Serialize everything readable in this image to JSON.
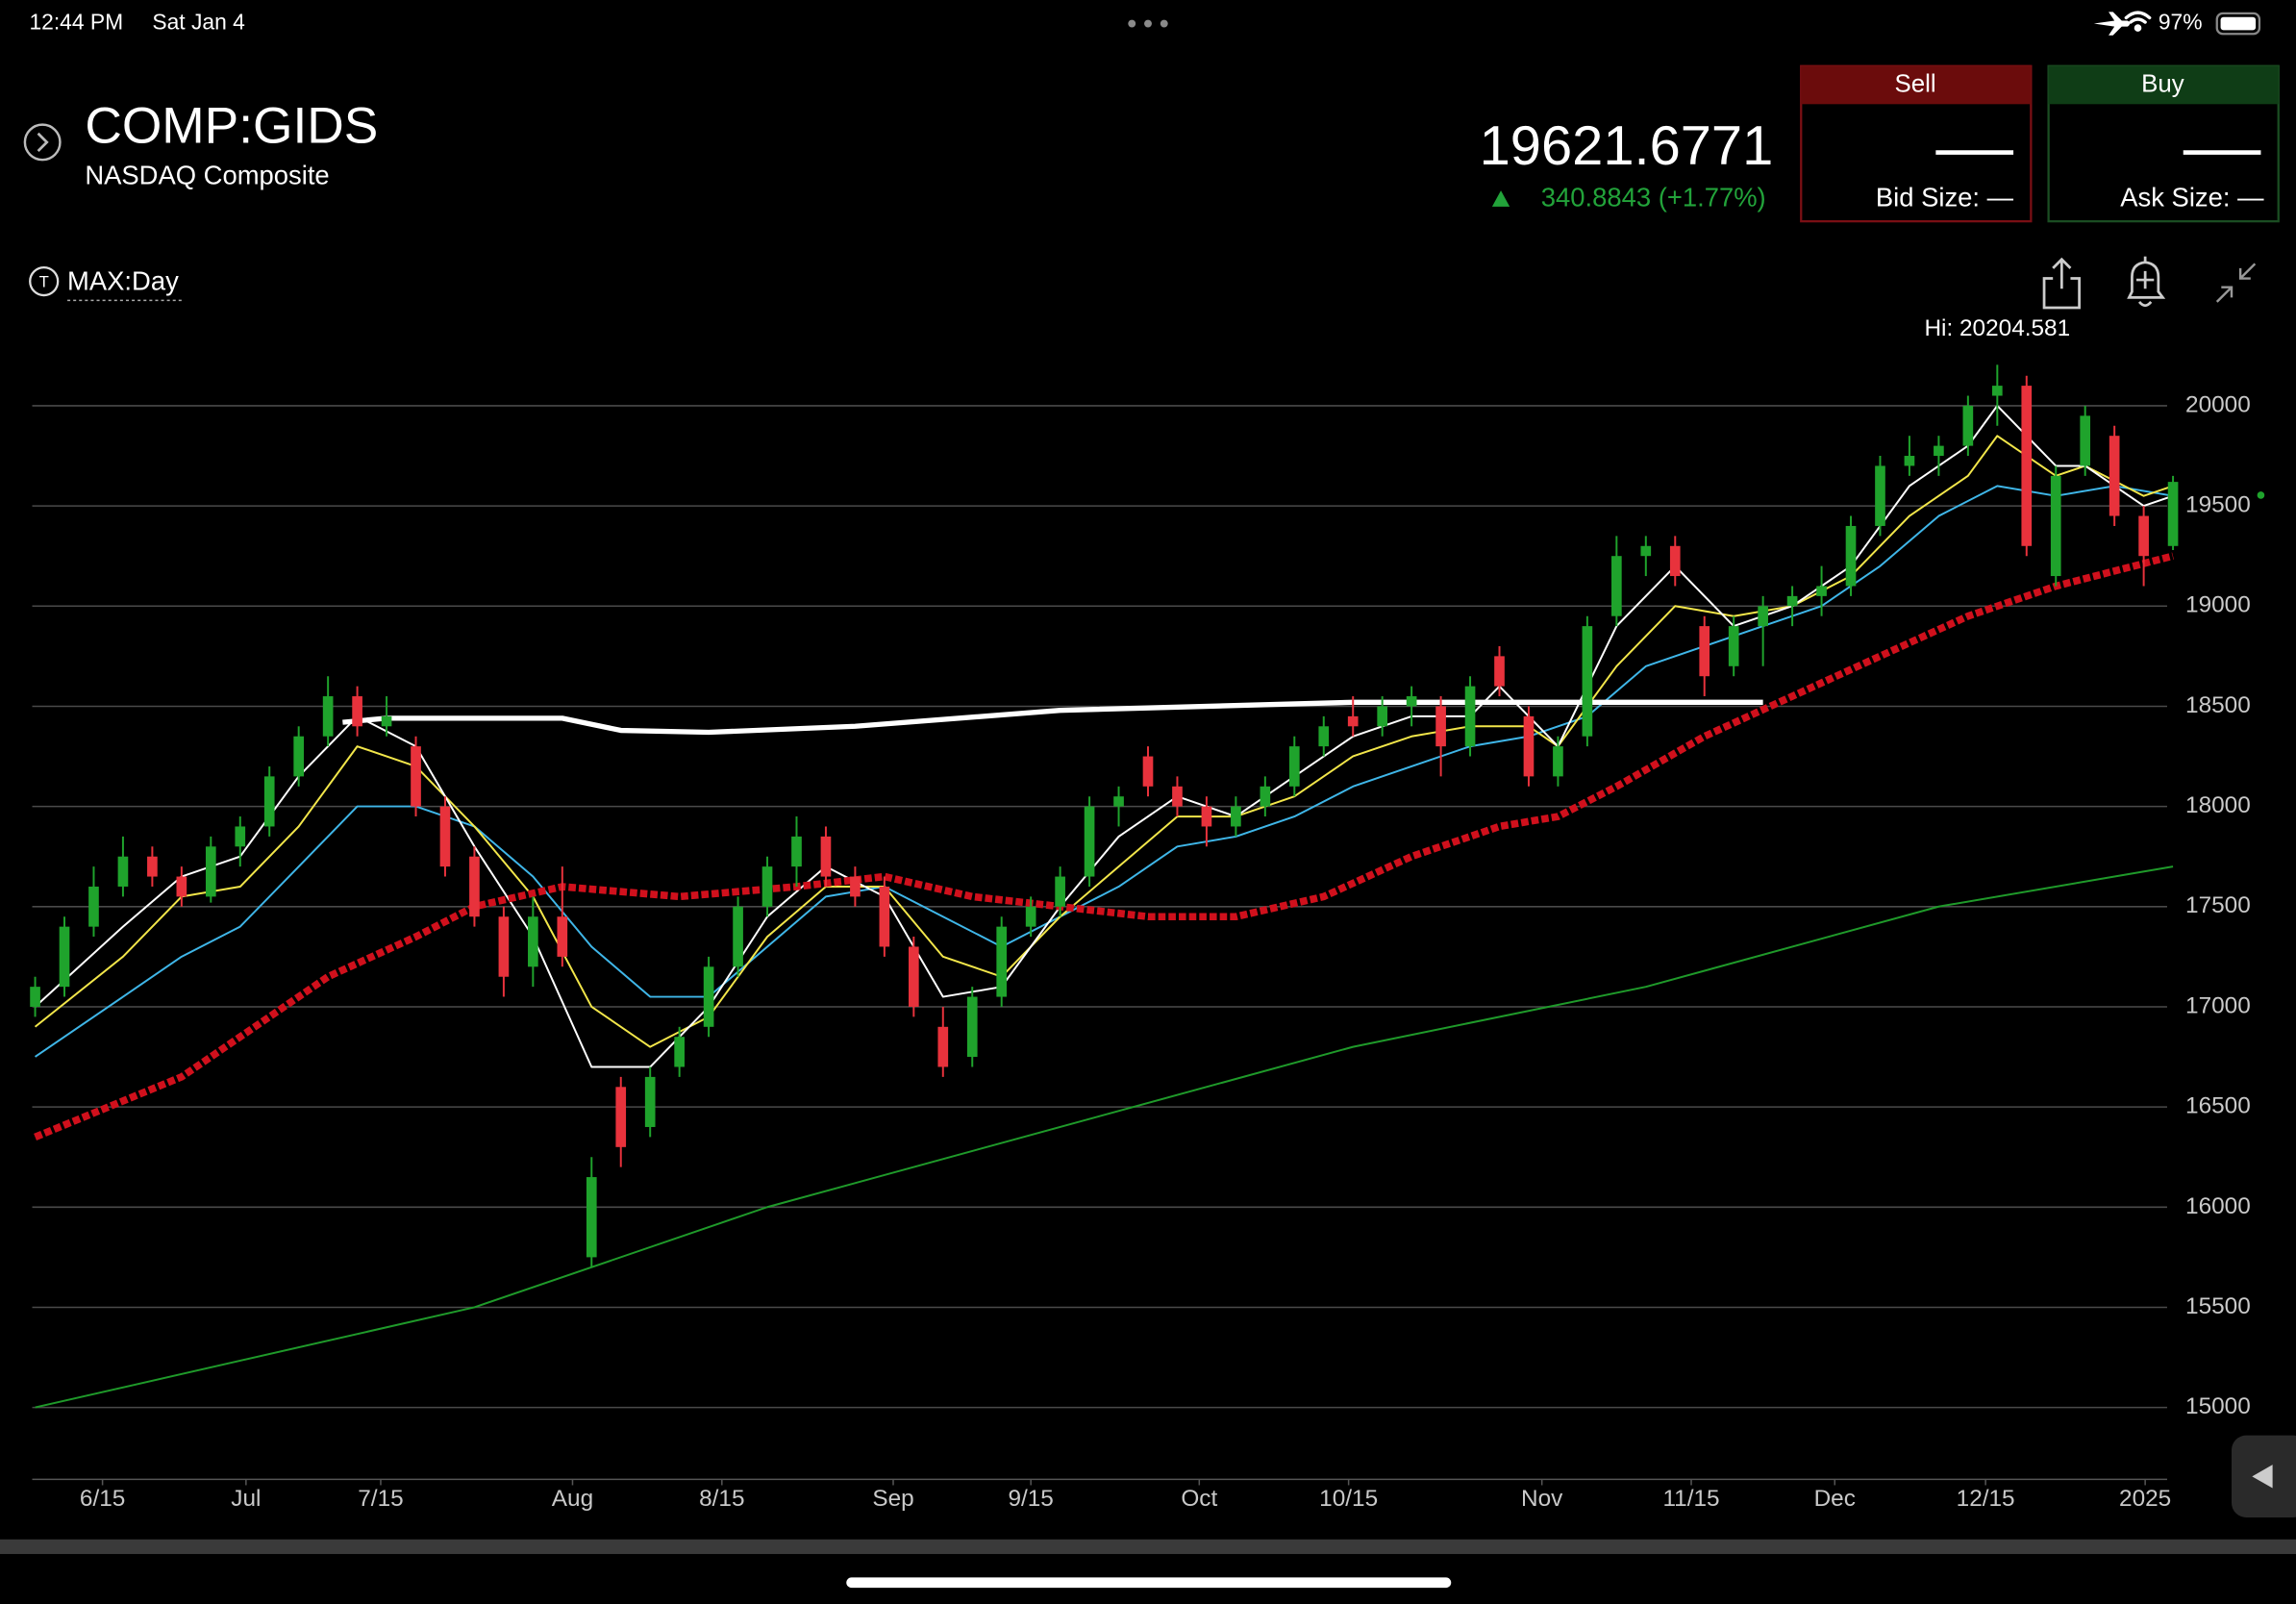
{
  "status_bar": {
    "time": "12:44 PM",
    "date": "Sat Jan 4",
    "battery": "97%"
  },
  "header": {
    "symbol": "COMP:GIDS",
    "name": "NASDAQ Composite",
    "price": "19621.6771",
    "change": "340.8843 (+1.77%)"
  },
  "trade": {
    "sell": "Sell",
    "bid_size": "Bid Size: —",
    "buy": "Buy",
    "ask_size": "Ask Size: —"
  },
  "timeframe": "MAX:Day",
  "chart_data": {
    "type": "candlestick",
    "annotation": "Hi: 20204.581",
    "up_color": "#1fa32c",
    "down_color": "#e8323c",
    "x": [
      0,
      2,
      4,
      6,
      8,
      10,
      12,
      14,
      16,
      18,
      20,
      22,
      24,
      26,
      28,
      30,
      32,
      34,
      36,
      38,
      40,
      42,
      44,
      46,
      48,
      50,
      52,
      54,
      56,
      58,
      60,
      62,
      64,
      66,
      68,
      70,
      72,
      74,
      76,
      78,
      80,
      82,
      84,
      86,
      88,
      90,
      92,
      94,
      96,
      98,
      100,
      102,
      104,
      106,
      108,
      110,
      112,
      114,
      116,
      118,
      120,
      122,
      124,
      126,
      128,
      130,
      132,
      134,
      136,
      138,
      140,
      142,
      144,
      146
    ],
    "open": [
      17000,
      17100,
      17400,
      17600,
      17750,
      17650,
      17550,
      17800,
      17900,
      18150,
      18350,
      18550,
      18400,
      18300,
      18000,
      17750,
      17450,
      17200,
      17450,
      15750,
      16600,
      16400,
      16700,
      16900,
      17200,
      17500,
      17700,
      17850,
      17650,
      17600,
      17300,
      16900,
      16750,
      17050,
      17400,
      17500,
      17650,
      18000,
      18250,
      18100,
      18000,
      17900,
      18000,
      18100,
      18300,
      18450,
      18400,
      18500,
      18500,
      18300,
      18750,
      18450,
      18150,
      18350,
      18950,
      19250,
      19300,
      18900,
      18700,
      18900,
      19000,
      19050,
      19100,
      19400,
      19700,
      19750,
      19800,
      20050,
      20100,
      19150,
      19700,
      19850,
      19450,
      19300
    ],
    "high": [
      17150,
      17450,
      17700,
      17850,
      17800,
      17700,
      17850,
      17950,
      18200,
      18400,
      18650,
      18600,
      18550,
      18350,
      18050,
      17800,
      17500,
      17550,
      17700,
      16250,
      16650,
      16700,
      16900,
      17250,
      17550,
      17750,
      17950,
      17900,
      17700,
      17650,
      17350,
      17000,
      17100,
      17450,
      17550,
      17700,
      18050,
      18100,
      18300,
      18150,
      18050,
      18050,
      18150,
      18350,
      18450,
      18550,
      18550,
      18600,
      18550,
      18650,
      18800,
      18500,
      18350,
      18950,
      19350,
      19350,
      19350,
      18950,
      18950,
      19050,
      19100,
      19200,
      19450,
      19750,
      19850,
      19850,
      20050,
      20204.58,
      20150,
      19700,
      20000,
      19900,
      19500,
      19650
    ],
    "low": [
      16950,
      17050,
      17350,
      17550,
      17600,
      17500,
      17520,
      17700,
      17850,
      18100,
      18300,
      18350,
      18350,
      17950,
      17650,
      17400,
      17050,
      17100,
      17200,
      15700,
      16200,
      16350,
      16650,
      16850,
      17150,
      17450,
      17600,
      17600,
      17500,
      17250,
      16950,
      16650,
      16700,
      17000,
      17350,
      17450,
      17600,
      17900,
      18050,
      17950,
      17800,
      17850,
      17950,
      18050,
      18250,
      18350,
      18350,
      18400,
      18150,
      18250,
      18550,
      18100,
      18100,
      18300,
      18900,
      19150,
      19100,
      18550,
      18650,
      18700,
      18900,
      18950,
      19050,
      19350,
      19650,
      19650,
      19750,
      19900,
      19250,
      19100,
      19650,
      19400,
      19100,
      19280
    ],
    "close": [
      17100,
      17400,
      17600,
      17750,
      17650,
      17550,
      17800,
      17900,
      18150,
      18350,
      18550,
      18400,
      18450,
      18000,
      17700,
      17450,
      17150,
      17450,
      17250,
      16150,
      16300,
      16650,
      16850,
      17200,
      17500,
      17700,
      17850,
      17650,
      17550,
      17300,
      17000,
      16700,
      17050,
      17400,
      17500,
      17650,
      18000,
      18050,
      18100,
      18000,
      17900,
      18000,
      18100,
      18300,
      18400,
      18400,
      18500,
      18550,
      18300,
      18600,
      18600,
      18150,
      18300,
      18900,
      19250,
      19300,
      19150,
      18650,
      18900,
      19000,
      19050,
      19100,
      19400,
      19700,
      19750,
      19800,
      20000,
      20100,
      19300,
      19650,
      19950,
      19450,
      19250,
      19620
    ],
    "series": [
      {
        "color": "#3fb6e8",
        "x": [
          0,
          6,
          10,
          14,
          18,
          22,
          26,
          30,
          34,
          38,
          42,
          46,
          50,
          54,
          58,
          62,
          66,
          70,
          74,
          78,
          82,
          86,
          90,
          94,
          98,
          102,
          106,
          110,
          114,
          118,
          122,
          126,
          130,
          134,
          138,
          142,
          146
        ],
        "values": [
          16750,
          17050,
          17250,
          17400,
          17700,
          18000,
          18000,
          17900,
          17650,
          17300,
          17050,
          17050,
          17300,
          17550,
          17600,
          17450,
          17300,
          17450,
          17600,
          17800,
          17850,
          17950,
          18100,
          18200,
          18300,
          18350,
          18450,
          18700,
          18800,
          18900,
          19000,
          19200,
          19450,
          19600,
          19550,
          19600,
          19550
        ]
      },
      {
        "color": "#f2e64a",
        "x": [
          0,
          6,
          10,
          14,
          18,
          22,
          26,
          30,
          34,
          38,
          42,
          46,
          50,
          54,
          58,
          62,
          66,
          70,
          74,
          78,
          82,
          86,
          90,
          94,
          98,
          102,
          104,
          108,
          112,
          116,
          120,
          124,
          128,
          132,
          134,
          138,
          140,
          144,
          146
        ],
        "values": [
          16900,
          17250,
          17550,
          17600,
          17900,
          18300,
          18200,
          17900,
          17550,
          17000,
          16800,
          16950,
          17350,
          17600,
          17600,
          17250,
          17150,
          17450,
          17700,
          17950,
          17950,
          18050,
          18250,
          18350,
          18400,
          18400,
          18300,
          18700,
          19000,
          18950,
          19000,
          19150,
          19450,
          19650,
          19850,
          19650,
          19700,
          19550,
          19600
        ]
      },
      {
        "color": "#ffffff",
        "x": [
          0,
          6,
          10,
          14,
          18,
          22,
          26,
          30,
          34,
          38,
          42,
          46,
          50,
          54,
          58,
          62,
          66,
          70,
          74,
          78,
          82,
          86,
          90,
          94,
          98,
          100,
          104,
          108,
          112,
          116,
          120,
          124,
          128,
          132,
          134,
          138,
          140,
          144,
          146
        ],
        "values": [
          17000,
          17400,
          17650,
          17750,
          18150,
          18450,
          18300,
          17800,
          17350,
          16700,
          16700,
          17000,
          17450,
          17700,
          17550,
          17050,
          17100,
          17500,
          17850,
          18050,
          17950,
          18150,
          18350,
          18450,
          18450,
          18600,
          18300,
          18900,
          19200,
          18900,
          19000,
          19200,
          19600,
          19800,
          20000,
          19700,
          19700,
          19500,
          19550
        ]
      },
      {
        "color": "#d0101c",
        "dotted": true,
        "x": [
          0,
          10,
          16,
          20,
          26,
          30,
          36,
          44,
          52,
          58,
          64,
          70,
          76,
          82,
          88,
          94,
          100,
          104,
          108,
          114,
          120,
          126,
          132,
          138,
          146
        ],
        "values": [
          16350,
          16650,
          16950,
          17150,
          17350,
          17500,
          17600,
          17550,
          17600,
          17650,
          17550,
          17500,
          17450,
          17450,
          17550,
          17750,
          17900,
          17950,
          18100,
          18350,
          18550,
          18750,
          18950,
          19100,
          19250
        ]
      },
      {
        "color": "#1f9a2a",
        "x": [
          0,
          30,
          50,
          70,
          90,
          110,
          130,
          146
        ],
        "values": [
          15000,
          15500,
          16000,
          16400,
          16800,
          17100,
          17500,
          17700
        ]
      },
      {
        "color": "#ffffff",
        "thick": true,
        "x": [
          21,
          24,
          36,
          40,
          46,
          56,
          70,
          90,
          118
        ],
        "values": [
          18420,
          18440,
          18440,
          18380,
          18370,
          18400,
          18480,
          18520,
          18520
        ]
      }
    ],
    "xlim": [
      -0.2,
      146.1
    ],
    "ylim": [
      14678,
      20270
    ],
    "yticks": [
      15000,
      15500,
      16000,
      16500,
      17000,
      17500,
      18000,
      18500,
      19000,
      19500,
      20000
    ],
    "xticks": [
      {
        "value": 4.6,
        "label": "6/15"
      },
      {
        "value": 14.4,
        "label": "Jul"
      },
      {
        "value": 23.6,
        "label": "7/15"
      },
      {
        "value": 36.7,
        "label": "Aug"
      },
      {
        "value": 46.9,
        "label": "8/15"
      },
      {
        "value": 58.6,
        "label": "Sep"
      },
      {
        "value": 68,
        "label": "9/15"
      },
      {
        "value": 79.5,
        "label": "Oct"
      },
      {
        "value": 89.7,
        "label": "10/15"
      },
      {
        "value": 102.9,
        "label": "Nov"
      },
      {
        "value": 113.1,
        "label": "11/15"
      },
      {
        "value": 122.9,
        "label": "Dec"
      },
      {
        "value": 133.2,
        "label": "12/15"
      },
      {
        "value": 144.1,
        "label": "2025"
      }
    ],
    "grid": true
  }
}
